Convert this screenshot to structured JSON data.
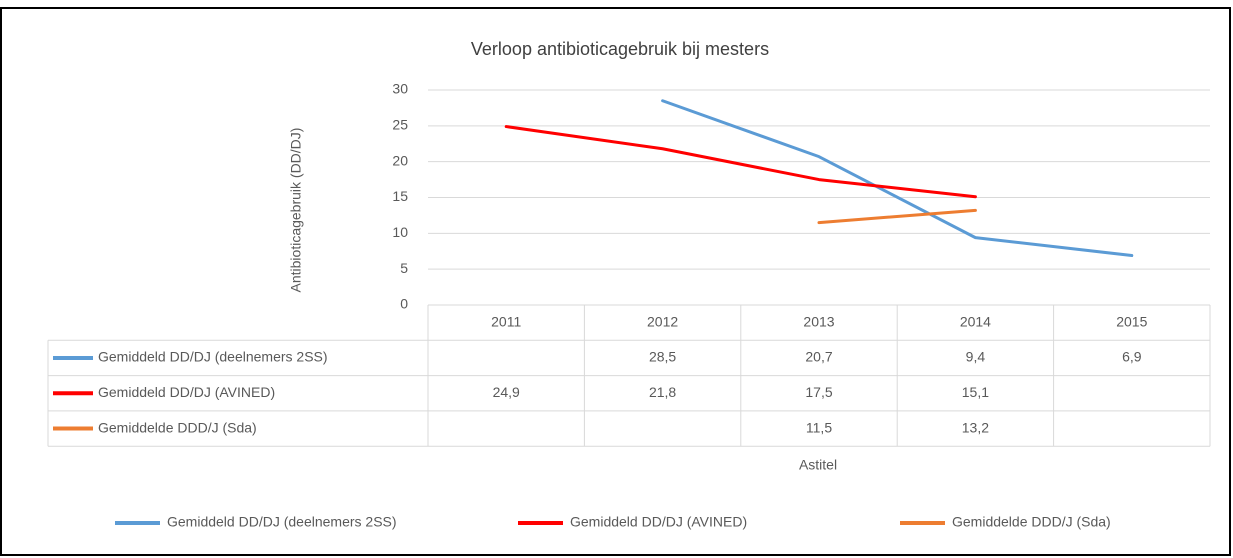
{
  "chart_data": {
    "type": "line",
    "title": "Verloop antibioticagebruik bij mesters",
    "y_label": "Antibioticagebruik (DD/DJ)",
    "x_label": "Astitel",
    "categories": [
      "2011",
      "2012",
      "2013",
      "2014",
      "2015"
    ],
    "series": [
      {
        "name": "Gemiddeld DD/DJ  (deelnemers 2SS)",
        "color": "#5b9bd5",
        "values": [
          null,
          28.5,
          20.7,
          9.4,
          6.9
        ],
        "value_labels": [
          null,
          "28,5",
          "20,7",
          "9,4",
          "6,9"
        ]
      },
      {
        "name": "Gemiddeld DD/DJ (AVINED)",
        "color": "#ff0000",
        "values": [
          24.9,
          21.8,
          17.5,
          15.1,
          null
        ],
        "value_labels": [
          "24,9",
          "21,8",
          "17,5",
          "15,1",
          null
        ]
      },
      {
        "name": "Gemiddelde DDD/J (Sda)",
        "color": "#ed7d31",
        "values": [
          null,
          null,
          11.5,
          13.2,
          null
        ],
        "value_labels": [
          null,
          null,
          "11,5",
          "13,2",
          null
        ]
      }
    ],
    "ylim": [
      0,
      30
    ],
    "yticks": [
      0,
      5,
      10,
      15,
      20,
      25,
      30
    ],
    "grid": true,
    "legend": "bottom"
  }
}
